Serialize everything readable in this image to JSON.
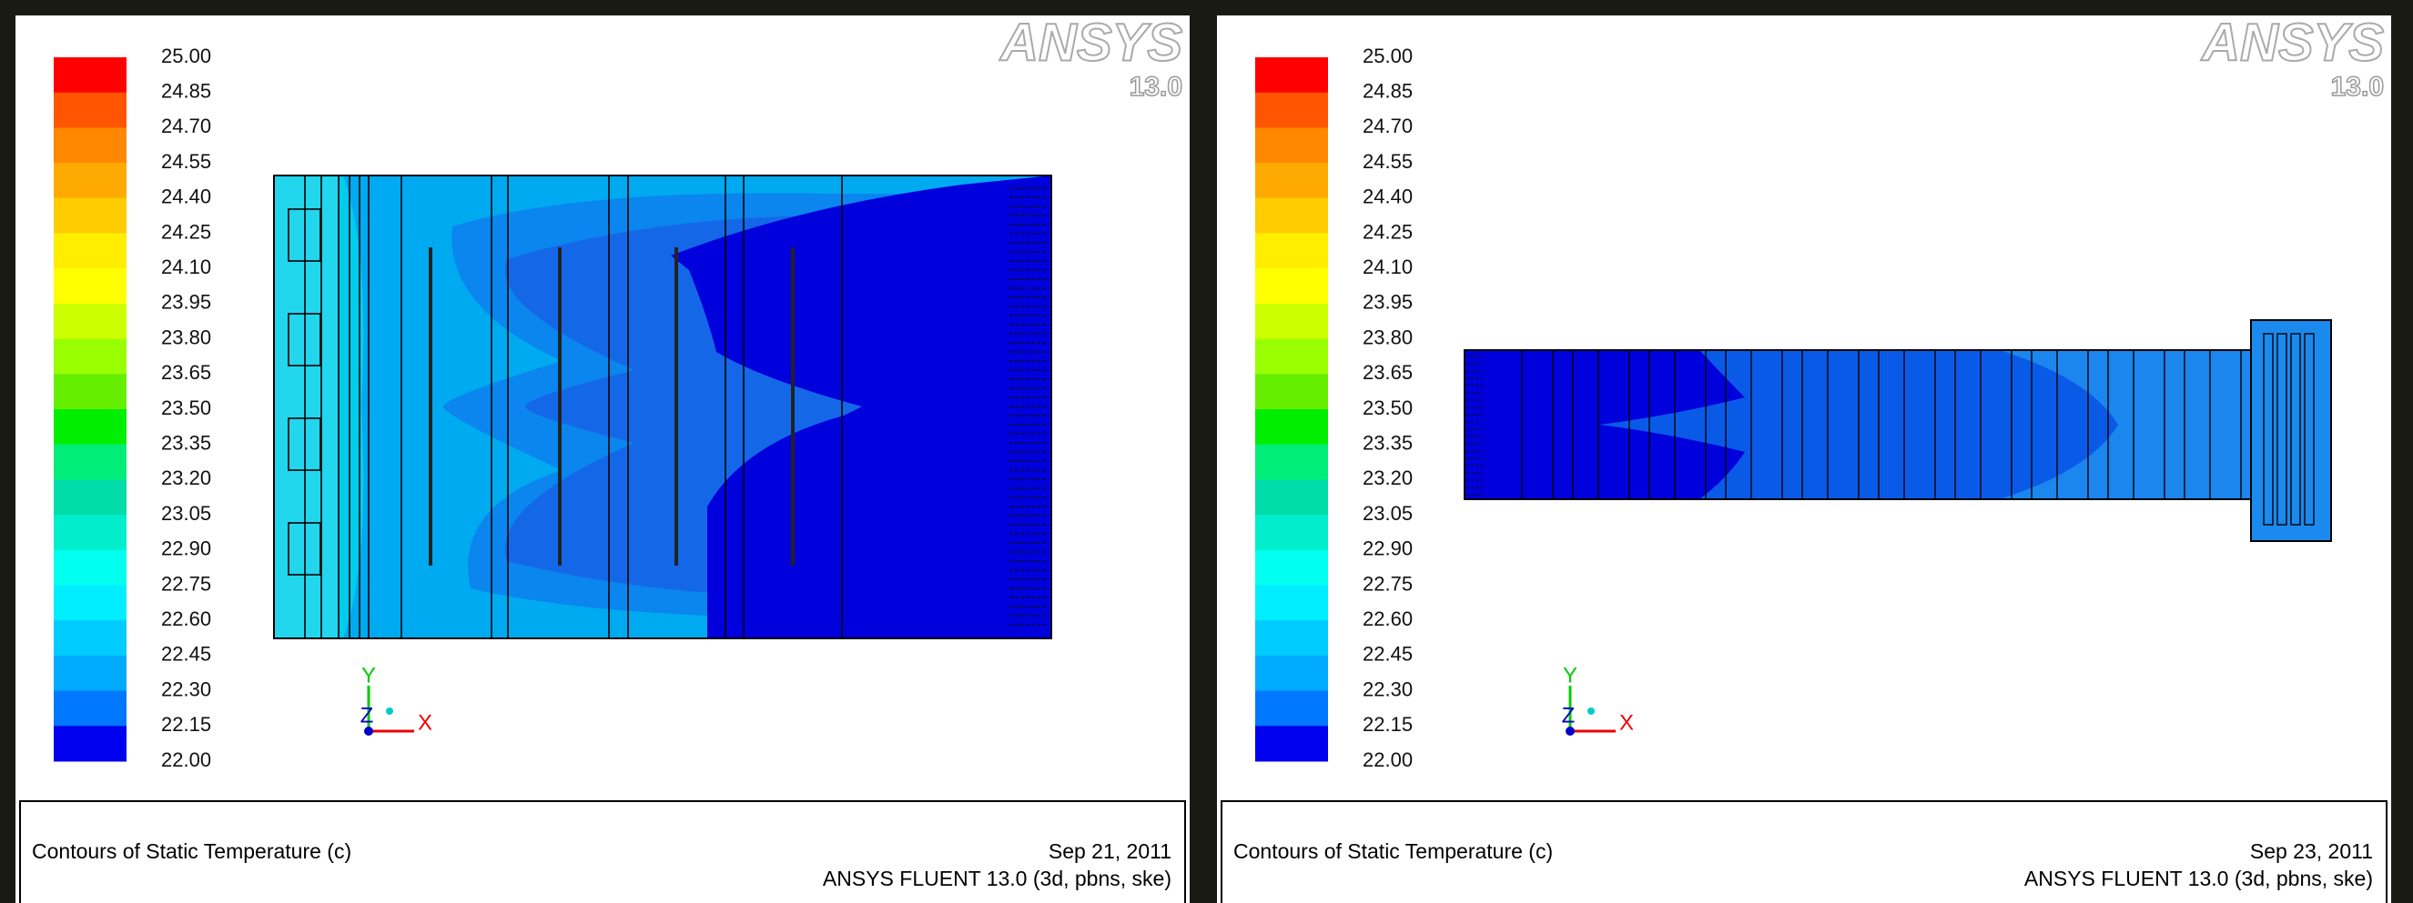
{
  "panels": [
    {
      "legend_labels": [
        "25.00",
        "24.85",
        "24.70",
        "24.55",
        "24.40",
        "24.25",
        "24.10",
        "23.95",
        "23.80",
        "23.65",
        "23.50",
        "23.35",
        "23.20",
        "23.05",
        "22.90",
        "22.75",
        "22.60",
        "22.45",
        "22.30",
        "22.15",
        "22.00"
      ],
      "logo": "ANSYS",
      "version": "13.0",
      "axes": {
        "y": "Y",
        "z": "Z",
        "x": "X"
      },
      "title": "Contours of Static Temperature (c)",
      "date": "Sep 21, 2011",
      "software": "ANSYS FLUENT 13.0 (3d, pbns, ske)"
    },
    {
      "legend_labels": [
        "25.00",
        "24.85",
        "24.70",
        "24.55",
        "24.40",
        "24.25",
        "24.10",
        "23.95",
        "23.80",
        "23.65",
        "23.50",
        "23.35",
        "23.20",
        "23.05",
        "22.90",
        "22.75",
        "22.60",
        "22.45",
        "22.30",
        "22.15",
        "22.00"
      ],
      "logo": "ANSYS",
      "version": "13.0",
      "axes": {
        "y": "Y",
        "z": "Z",
        "x": "X"
      },
      "title": "Contours of Static Temperature (c)",
      "date": "Sep 23, 2011",
      "software": "ANSYS FLUENT 13.0 (3d, pbns, ske)"
    }
  ]
}
